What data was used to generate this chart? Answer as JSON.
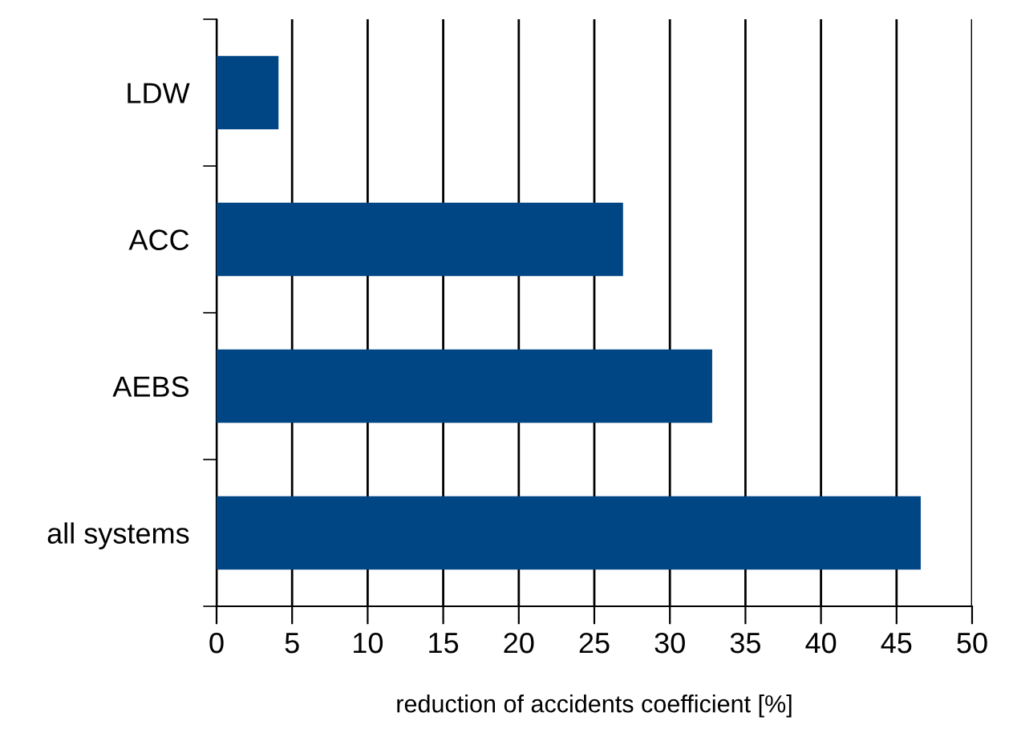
{
  "chart_data": {
    "type": "bar",
    "orientation": "horizontal",
    "xlabel": "reduction of accidents coefficient [%]",
    "categories": [
      "LDW",
      "ACC",
      "AEBS",
      "all systems"
    ],
    "values": [
      4.1,
      26.9,
      32.8,
      46.6
    ],
    "color": "#004684",
    "xlim": [
      0,
      50
    ],
    "xticks": [
      0,
      5,
      10,
      15,
      20,
      25,
      30,
      35,
      40,
      45,
      50
    ],
    "grid": "x"
  }
}
